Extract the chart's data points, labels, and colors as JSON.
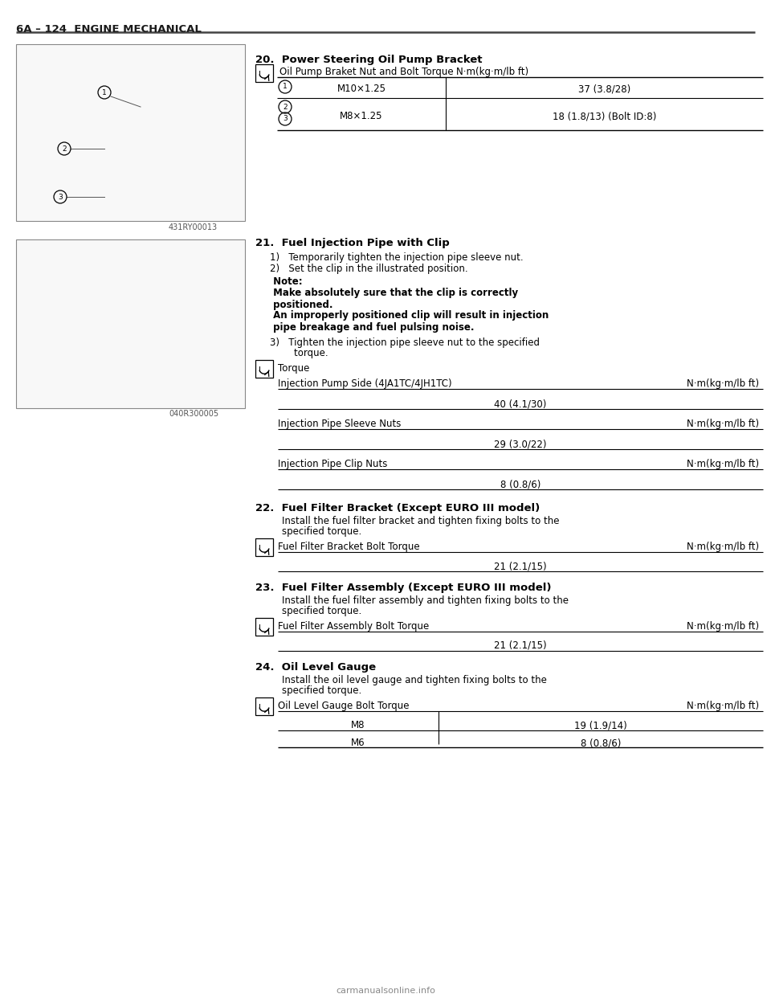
{
  "page_header": "6A – 124  ENGINE MECHANICAL",
  "background_color": "#ffffff",
  "text_color": "#000000",
  "header_line_color": "#555555",
  "section20_title": "20.  Power Steering Oil Pump Bracket",
  "section20_subtitle": "Oil Pump Braket Nut and Bolt Torque",
  "section20_unit": "N·m(kg·m/lb ft)",
  "section20_rows": [
    {
      "col1": "M10×1.25",
      "col2": "37 (3.8/28)"
    },
    {
      "col1": "M8×1.25",
      "col2": "18 (1.8/13) (Bolt ID:8)"
    }
  ],
  "image1_caption": "431RY00013",
  "image2_caption": "040R300005",
  "section21_title": "21.  Fuel Injection Pipe with Clip",
  "section21_step1": "1)   Temporarily tighten the injection pipe sleeve nut.",
  "section21_step2": "2)   Set the clip in the illustrated position.",
  "section21_note_label": " Note:",
  "section21_note_bold1": " Make absolutely sure that the clip is correctly\n positioned.",
  "section21_note_bold2": " An improperly positioned clip will result in injection\n pipe breakage and fuel pulsing noise.",
  "section21_step3a": "3)   Tighten the injection pipe sleeve nut to the specified",
  "section21_step3b": "        torque.",
  "section21_torque_label": "Torque",
  "section21_torque_rows": [
    {
      "label": "Injection Pump Side (4JA1TC/4JH1TC)",
      "unit": "N·m(kg·m/lb ft)",
      "value": "40 (4.1/30)"
    },
    {
      "label": "Injection Pipe Sleeve Nuts",
      "unit": "N·m(kg·m/lb ft)",
      "value": "29 (3.0/22)"
    },
    {
      "label": "Injection Pipe Clip Nuts",
      "unit": "N·m(kg·m/lb ft)",
      "value": "8 (0.8/6)"
    }
  ],
  "section22_title": "22.  Fuel Filter Bracket (Except EURO III model)",
  "section22_text1": "    Install the fuel filter bracket and tighten fixing bolts to the",
  "section22_text2": "    specified torque.",
  "section22_torque_label": "Fuel Filter Bracket Bolt Torque",
  "section22_torque_unit": "N·m(kg·m/lb ft)",
  "section22_torque_value": "21 (2.1/15)",
  "section23_title": "23.  Fuel Filter Assembly (Except EURO III model)",
  "section23_text1": "    Install the fuel filter assembly and tighten fixing bolts to the",
  "section23_text2": "    specified torque.",
  "section23_torque_label": "Fuel Filter Assembly Bolt Torque",
  "section23_torque_unit": "N·m(kg·m/lb ft)",
  "section23_torque_value": "21 (2.1/15)",
  "section24_title": "24.  Oil Level Gauge",
  "section24_text1": "    Install the oil level gauge and tighten fixing bolts to the",
  "section24_text2": "    specified torque.",
  "section24_torque_label": "Oil Level Gauge Bolt Torque",
  "section24_torque_unit": "N·m(kg·m/lb ft)",
  "section24_rows": [
    {
      "col1": "M8",
      "col2": "19 (1.9/14)"
    },
    {
      "col1": "M6",
      "col2": "8 (0.8/6)"
    }
  ],
  "watermark": "carmanualsonline.info"
}
